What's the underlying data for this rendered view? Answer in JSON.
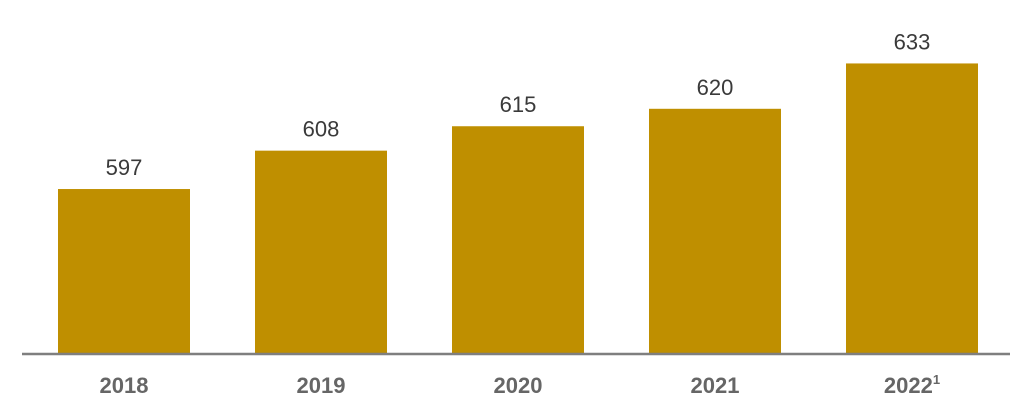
{
  "chart_data": {
    "type": "bar",
    "title": "",
    "xlabel": "",
    "ylabel": "",
    "categories": [
      "2018",
      "2019",
      "2020",
      "2021",
      "2022"
    ],
    "category_superscripts": [
      "",
      "",
      "",
      "",
      "1"
    ],
    "values": [
      597,
      608,
      615,
      620,
      633
    ],
    "data_labels": [
      "597",
      "608",
      "615",
      "620",
      "633"
    ],
    "ylim": [
      550,
      638
    ],
    "grid": false,
    "legend": "none",
    "bar_color": "#bf8f00",
    "axis_color": "#7f7f7f",
    "label_color": "#3a3a3a",
    "tick_color": "#666666"
  }
}
